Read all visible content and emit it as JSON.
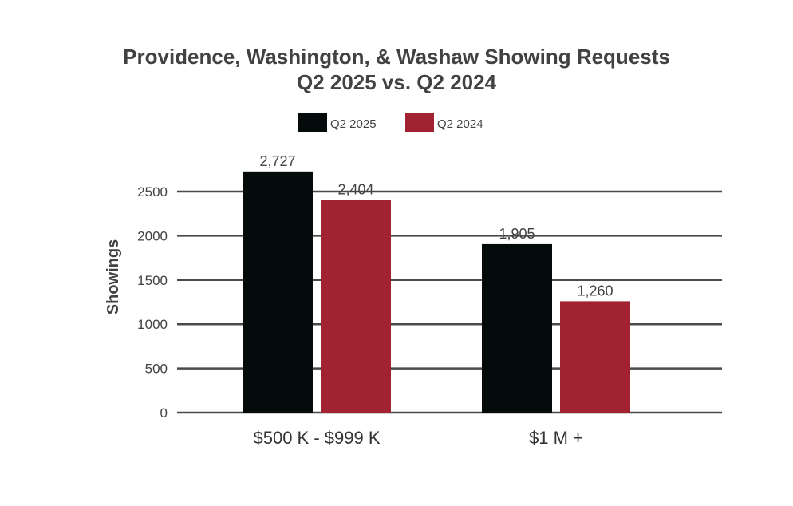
{
  "chart_data": {
    "type": "bar",
    "title_lines": [
      "Providence, Washington, & Washaw Showing Requests",
      "Q2 2025 vs. Q2 2024"
    ],
    "ylabel": "Showings",
    "xlabel": "",
    "categories": [
      "$500 K - $999 K",
      "$1 M +"
    ],
    "series": [
      {
        "name": "Q2 2025",
        "values": [
          2727,
          1905
        ],
        "labels": [
          "2,727",
          "1,905"
        ]
      },
      {
        "name": "Q2 2024",
        "values": [
          2404,
          1260
        ],
        "labels": [
          "2,404",
          "1,260"
        ]
      }
    ],
    "ylim": [
      0,
      2500
    ],
    "yticks": [
      0,
      500,
      1000,
      1500,
      2000,
      2500
    ],
    "ytick_labels": [
      "0",
      "500",
      "1000",
      "1500",
      "2000",
      "2500"
    ],
    "grid": true,
    "legend_position": "top-center",
    "colors": {
      "Q2 2025": "#050a0b",
      "Q2 2024": "#a12231",
      "grid": "#4a4a4a"
    }
  }
}
